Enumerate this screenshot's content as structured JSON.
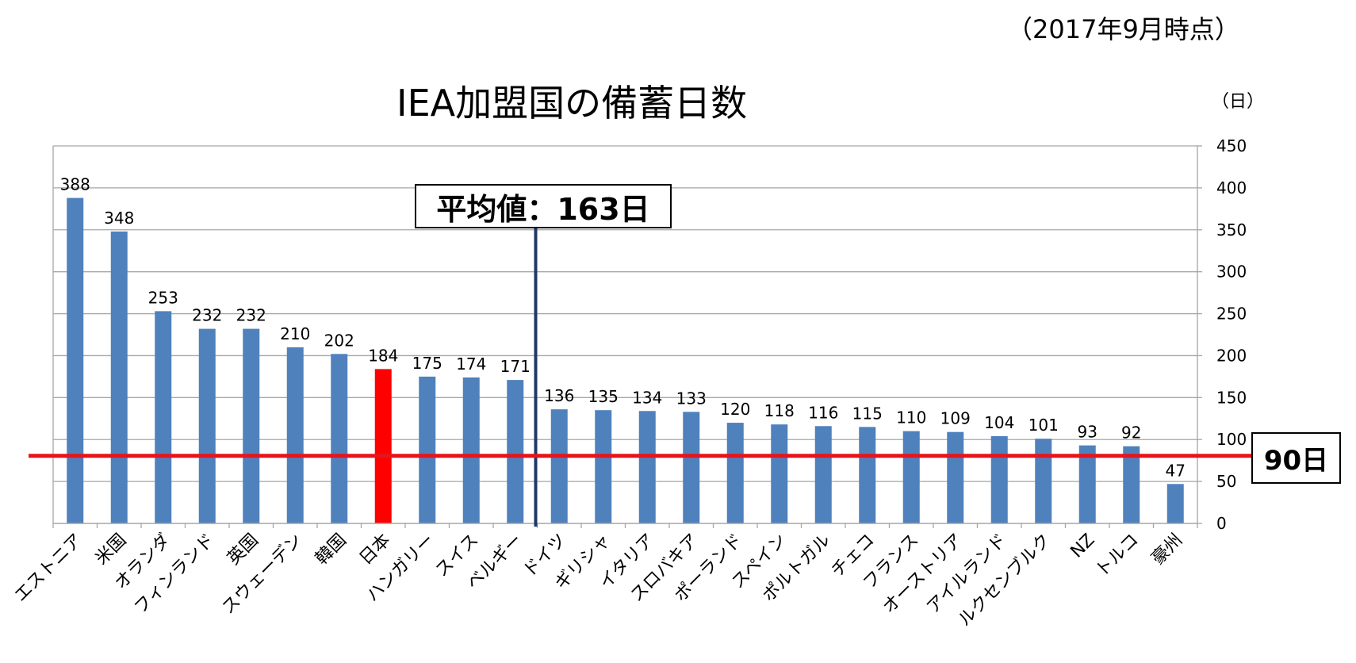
{
  "header": {
    "date_note": "（2017年9月時点）",
    "title": "IEA加盟国の備蓄日数",
    "unit": "（日）"
  },
  "annotations": {
    "average_label": "平均値：163日",
    "reference_label": "90日"
  },
  "colors": {
    "bar": "#4f81bd",
    "highlight_bar": "#ff0000",
    "reference_line": "#e8141b",
    "average_line": "#1f3864",
    "grid": "#a6a6a6"
  },
  "chart_data": {
    "type": "bar",
    "title": "IEA加盟国の備蓄日数",
    "ylabel": "（日）",
    "y_axis_position": "right",
    "ylim": [
      0,
      450
    ],
    "yticks": [
      0,
      50,
      100,
      150,
      200,
      250,
      300,
      350,
      400,
      450
    ],
    "grid": true,
    "categories": [
      "エストニア",
      "米国",
      "オランダ",
      "フィンランド",
      "英国",
      "スウェーデン",
      "韓国",
      "日本",
      "ハンガリー",
      "スイス",
      "ベルギー",
      "ドイツ",
      "ギリシャ",
      "イタリア",
      "スロバキア",
      "ポーランド",
      "スペイン",
      "ポルトガル",
      "チェコ",
      "フランス",
      "オーストリア",
      "アイルランド",
      "ルクセンブルク",
      "NZ",
      "トルコ",
      "豪州"
    ],
    "values": [
      388,
      348,
      253,
      232,
      232,
      210,
      202,
      184,
      175,
      174,
      171,
      136,
      135,
      134,
      133,
      120,
      118,
      116,
      115,
      110,
      109,
      104,
      101,
      93,
      92,
      47
    ],
    "highlight_category": "日本",
    "reference_line": {
      "value": 90,
      "label": "90日"
    },
    "average_line": {
      "value": 163,
      "label": "平均値：163日"
    }
  }
}
